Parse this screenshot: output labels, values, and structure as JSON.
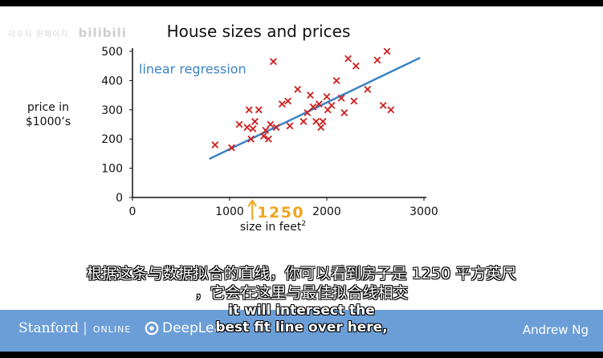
{
  "watermark": {
    "text": "리우지 원페이지",
    "brand": "bilibili"
  },
  "chart_data": {
    "type": "scatter",
    "title": "House sizes and prices",
    "xlabel": "size in feet",
    "xlabel_sup": "2",
    "ylabel_line1": "price in",
    "ylabel_line2": "$1000’s",
    "xlim": [
      0,
      3000
    ],
    "ylim": [
      0,
      500
    ],
    "xticks": [
      0,
      1000,
      2000,
      3000
    ],
    "yticks": [
      0,
      100,
      200,
      300,
      400,
      500
    ],
    "points": [
      [
        850,
        180
      ],
      [
        1020,
        170
      ],
      [
        1100,
        250
      ],
      [
        1180,
        240
      ],
      [
        1200,
        300
      ],
      [
        1220,
        200
      ],
      [
        1240,
        235
      ],
      [
        1260,
        260
      ],
      [
        1300,
        300
      ],
      [
        1350,
        210
      ],
      [
        1370,
        230
      ],
      [
        1400,
        200
      ],
      [
        1420,
        250
      ],
      [
        1450,
        465
      ],
      [
        1480,
        240
      ],
      [
        1540,
        320
      ],
      [
        1600,
        330
      ],
      [
        1620,
        245
      ],
      [
        1700,
        370
      ],
      [
        1760,
        260
      ],
      [
        1800,
        290
      ],
      [
        1830,
        350
      ],
      [
        1860,
        310
      ],
      [
        1890,
        260
      ],
      [
        1920,
        320
      ],
      [
        1940,
        240
      ],
      [
        1960,
        260
      ],
      [
        2000,
        345
      ],
      [
        2010,
        300
      ],
      [
        2050,
        315
      ],
      [
        2100,
        400
      ],
      [
        2150,
        340
      ],
      [
        2180,
        290
      ],
      [
        2220,
        475
      ],
      [
        2280,
        330
      ],
      [
        2300,
        450
      ],
      [
        2420,
        370
      ],
      [
        2520,
        470
      ],
      [
        2580,
        315
      ],
      [
        2620,
        500
      ],
      [
        2660,
        300
      ]
    ],
    "regression_line": {
      "label": "linear regression",
      "x": [
        790,
        2960
      ],
      "y": [
        132,
        478
      ]
    },
    "annotation": {
      "label": "1250",
      "x": 1250
    },
    "colors": {
      "points": "#cc1f1f",
      "line": "#3b83c4",
      "annotation": "#f2a41c"
    }
  },
  "subtitles": {
    "cn_line1": "根据这条与数据拟合的直线，你可以看到房子是 1250 平方英尺",
    "cn_line2": "，它会在这里与最佳拟合线相交",
    "en_line1": "it will intersect the",
    "en_line2": "best fit line over here,"
  },
  "footer": {
    "stanford": "Stanford",
    "online": "ONLINE",
    "deeplearning": "DeepLea",
    "instructor": "Andrew Ng"
  }
}
